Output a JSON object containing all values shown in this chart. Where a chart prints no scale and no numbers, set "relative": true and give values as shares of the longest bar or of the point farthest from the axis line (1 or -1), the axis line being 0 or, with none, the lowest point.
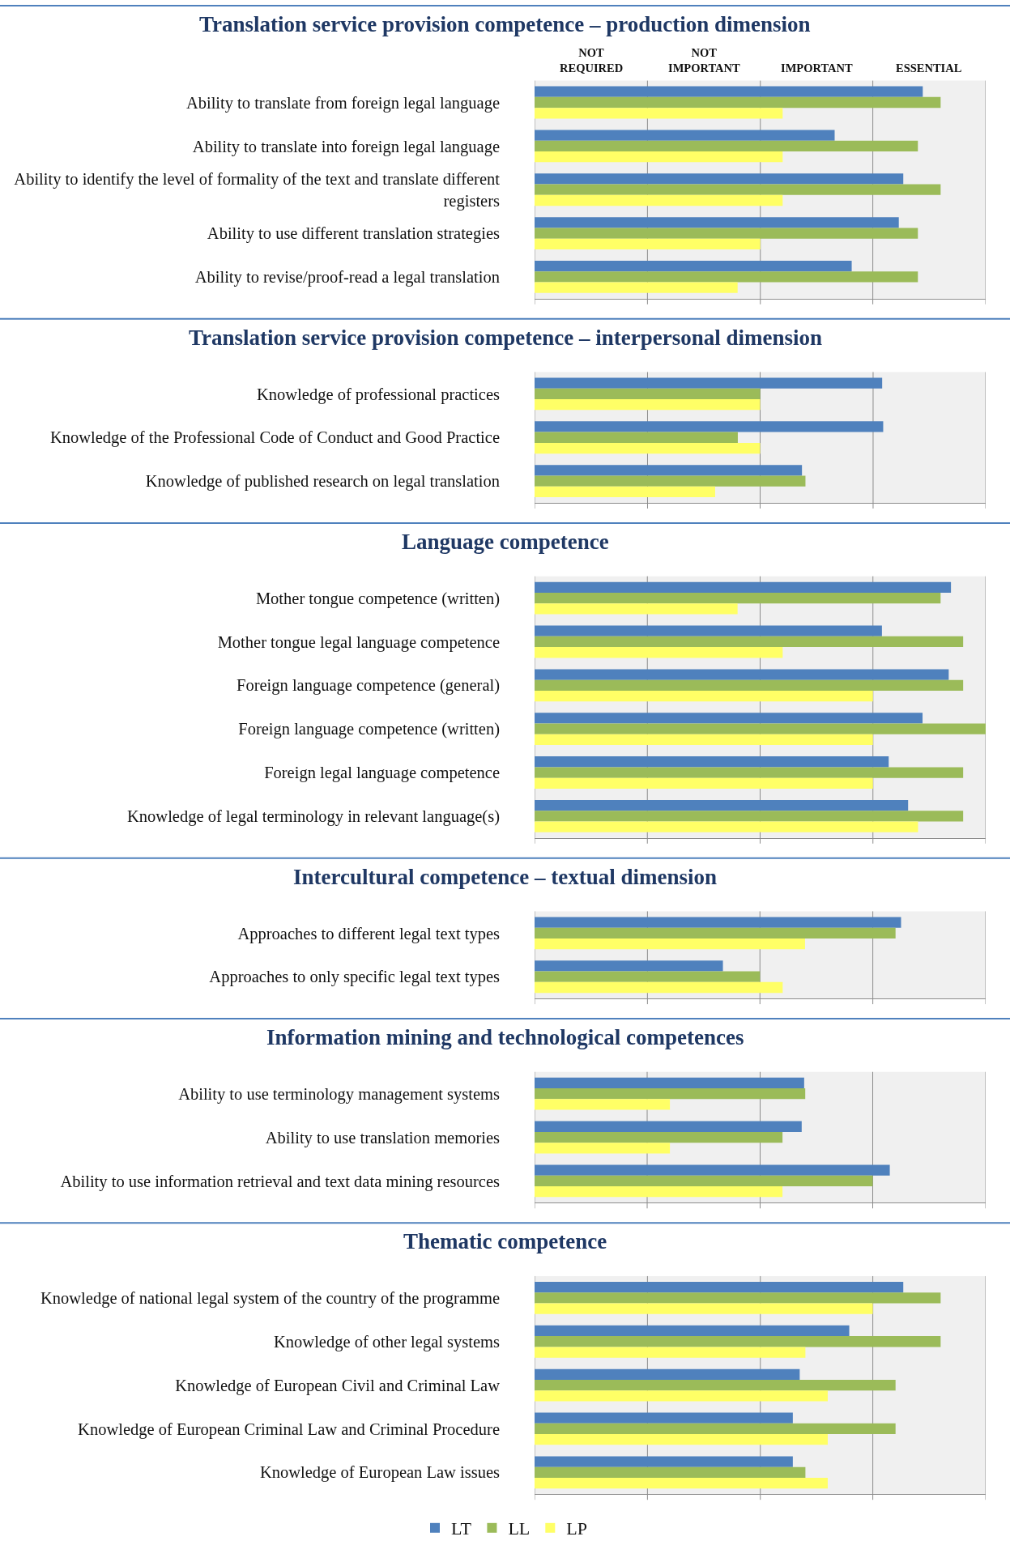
{
  "chart_data": [
    {
      "type": "bar",
      "orientation": "horizontal",
      "relative": true,
      "title": "Translation service provision competence – production dimension",
      "categories": [
        "Ability to translate from foreign legal language",
        "Ability to translate into foreign legal language",
        "Ability to identify the level of formality of the text and translate different registers",
        "Ability to use different translation strategies",
        "Ability to revise/proof-read a legal translation"
      ],
      "series": [
        {
          "color": "#4f81bd",
          "values": [
            0.956,
            0.739,
            0.908,
            0.897,
            0.781
          ]
        },
        {
          "color": "#9bbb59",
          "values": [
            1.0,
            0.944,
            1.0,
            0.944,
            0.944
          ]
        },
        {
          "color": "#ffff66",
          "values": [
            0.611,
            0.611,
            0.611,
            0.556,
            0.5
          ]
        }
      ],
      "bands": [
        {
          "axis": "x",
          "from": 0,
          "to": 0.278,
          "label": "NOT REQUIRED",
          "color": "#f0f0f0"
        },
        {
          "axis": "x",
          "from": 0.278,
          "to": 0.556,
          "label": "NOT IMPORTANT",
          "color": "#f0f0f0"
        },
        {
          "axis": "x",
          "from": 0.556,
          "to": 0.833,
          "label": "IMPORTANT",
          "color": "#f0f0f0"
        },
        {
          "axis": "x",
          "from": 0.833,
          "to": 1.111,
          "label": "ESSENTIAL",
          "color": "#f0f0f0"
        }
      ],
      "tick_labels": "y"
    },
    {
      "type": "bar",
      "orientation": "horizontal",
      "relative": true,
      "title": "Translation service provision competence – interpersonal dimension",
      "categories": [
        "Knowledge of professional practices",
        "Knowledge of the Professional Code of Conduct and Good Practice",
        "Knowledge of published research on legal translation"
      ],
      "series": [
        {
          "color": "#4f81bd",
          "values": [
            0.997,
            1.0,
            0.767
          ]
        },
        {
          "color": "#9bbb59",
          "values": [
            0.647,
            0.583,
            0.777
          ]
        },
        {
          "color": "#ffff66",
          "values": [
            0.647,
            0.647,
            0.518
          ]
        }
      ],
      "bands": [
        {
          "axis": "x",
          "from": 0,
          "to": 0.324,
          "color": "#f0f0f0"
        },
        {
          "axis": "x",
          "from": 0.324,
          "to": 0.647,
          "color": "#f0f0f0"
        },
        {
          "axis": "x",
          "from": 0.647,
          "to": 0.971,
          "color": "#f0f0f0"
        },
        {
          "axis": "x",
          "from": 0.971,
          "to": 1.294,
          "color": "#f0f0f0"
        }
      ],
      "tick_labels": "y"
    },
    {
      "type": "bar",
      "orientation": "horizontal",
      "relative": true,
      "title": "Language competence",
      "categories": [
        "Mother tongue competence (written)",
        "Mother tongue legal language competence",
        "Foreign language competence (general)",
        "Foreign language competence (written)",
        "Foreign legal language competence",
        "Knowledge of legal terminology in relevant language(s)"
      ],
      "series": [
        {
          "color": "#4f81bd",
          "values": [
            0.923,
            0.77,
            0.918,
            0.86,
            0.785,
            0.828
          ]
        },
        {
          "color": "#9bbb59",
          "values": [
            0.9,
            0.95,
            0.95,
            1.0,
            0.95,
            0.95
          ]
        },
        {
          "color": "#ffff66",
          "values": [
            0.45,
            0.55,
            0.75,
            0.75,
            0.75,
            0.85
          ]
        }
      ],
      "bands": [
        {
          "axis": "x",
          "from": 0,
          "to": 0.25,
          "color": "#f0f0f0"
        },
        {
          "axis": "x",
          "from": 0.25,
          "to": 0.5,
          "color": "#f0f0f0"
        },
        {
          "axis": "x",
          "from": 0.5,
          "to": 0.75,
          "color": "#f0f0f0"
        },
        {
          "axis": "x",
          "from": 0.75,
          "to": 1.0,
          "color": "#f0f0f0"
        }
      ],
      "tick_labels": "y"
    },
    {
      "type": "bar",
      "orientation": "horizontal",
      "relative": true,
      "title": "Intercultural competence – textual dimension",
      "categories": [
        "Approaches to different legal text types",
        "Approaches to only specific legal text types"
      ],
      "series": [
        {
          "color": "#4f81bd",
          "values": [
            1.0,
            0.514
          ]
        },
        {
          "color": "#9bbb59",
          "values": [
            0.985,
            0.615
          ]
        },
        {
          "color": "#ffff66",
          "values": [
            0.738,
            0.677
          ]
        }
      ],
      "bands": [
        {
          "axis": "x",
          "from": 0,
          "to": 0.308,
          "color": "#f0f0f0"
        },
        {
          "axis": "x",
          "from": 0.308,
          "to": 0.615,
          "color": "#f0f0f0"
        },
        {
          "axis": "x",
          "from": 0.615,
          "to": 0.923,
          "color": "#f0f0f0"
        },
        {
          "axis": "x",
          "from": 0.923,
          "to": 1.231,
          "color": "#f0f0f0"
        }
      ],
      "tick_labels": "y"
    },
    {
      "type": "bar",
      "orientation": "horizontal",
      "relative": true,
      "title": "Information mining and technological competences",
      "categories": [
        "Ability to use terminology management systems",
        "Ability to use translation memories",
        "Ability to use information retrieval and text data mining resources"
      ],
      "series": [
        {
          "color": "#4f81bd",
          "values": [
            0.759,
            0.752,
            1.0
          ]
        },
        {
          "color": "#9bbb59",
          "values": [
            0.762,
            0.698,
            0.952
          ]
        },
        {
          "color": "#ffff66",
          "values": [
            0.381,
            0.381,
            0.698
          ]
        }
      ],
      "bands": [
        {
          "axis": "x",
          "from": 0,
          "to": 0.317,
          "color": "#f0f0f0"
        },
        {
          "axis": "x",
          "from": 0.317,
          "to": 0.635,
          "color": "#f0f0f0"
        },
        {
          "axis": "x",
          "from": 0.635,
          "to": 0.952,
          "color": "#f0f0f0"
        },
        {
          "axis": "x",
          "from": 0.952,
          "to": 1.27,
          "color": "#f0f0f0"
        }
      ],
      "tick_labels": "y"
    },
    {
      "type": "bar",
      "orientation": "horizontal",
      "relative": true,
      "title": "Thematic competence",
      "categories": [
        "Knowledge of national legal system of the country of the programme",
        "Knowledge of other legal systems",
        "Knowledge of European Civil and Criminal Law",
        "Knowledge of European Criminal Law and Criminal Procedure",
        "Knowledge of European Law issues"
      ],
      "series": [
        {
          "name": "LT",
          "color": "#4f81bd",
          "values": [
            0.908,
            0.775,
            0.653,
            0.636,
            0.636
          ]
        },
        {
          "name": "LL",
          "color": "#9bbb59",
          "values": [
            1.0,
            1.0,
            0.889,
            0.889,
            0.667
          ]
        },
        {
          "name": "LP",
          "color": "#ffff66",
          "values": [
            0.833,
            0.667,
            0.722,
            0.722,
            0.722
          ]
        }
      ],
      "bands": [
        {
          "axis": "x",
          "from": 0,
          "to": 0.278,
          "color": "#f0f0f0"
        },
        {
          "axis": "x",
          "from": 0.278,
          "to": 0.556,
          "color": "#f0f0f0"
        },
        {
          "axis": "x",
          "from": 0.556,
          "to": 0.833,
          "color": "#f0f0f0"
        },
        {
          "axis": "x",
          "from": 0.833,
          "to": 1.111,
          "color": "#f0f0f0"
        }
      ],
      "tick_labels": "y",
      "legend": "bottom"
    }
  ]
}
